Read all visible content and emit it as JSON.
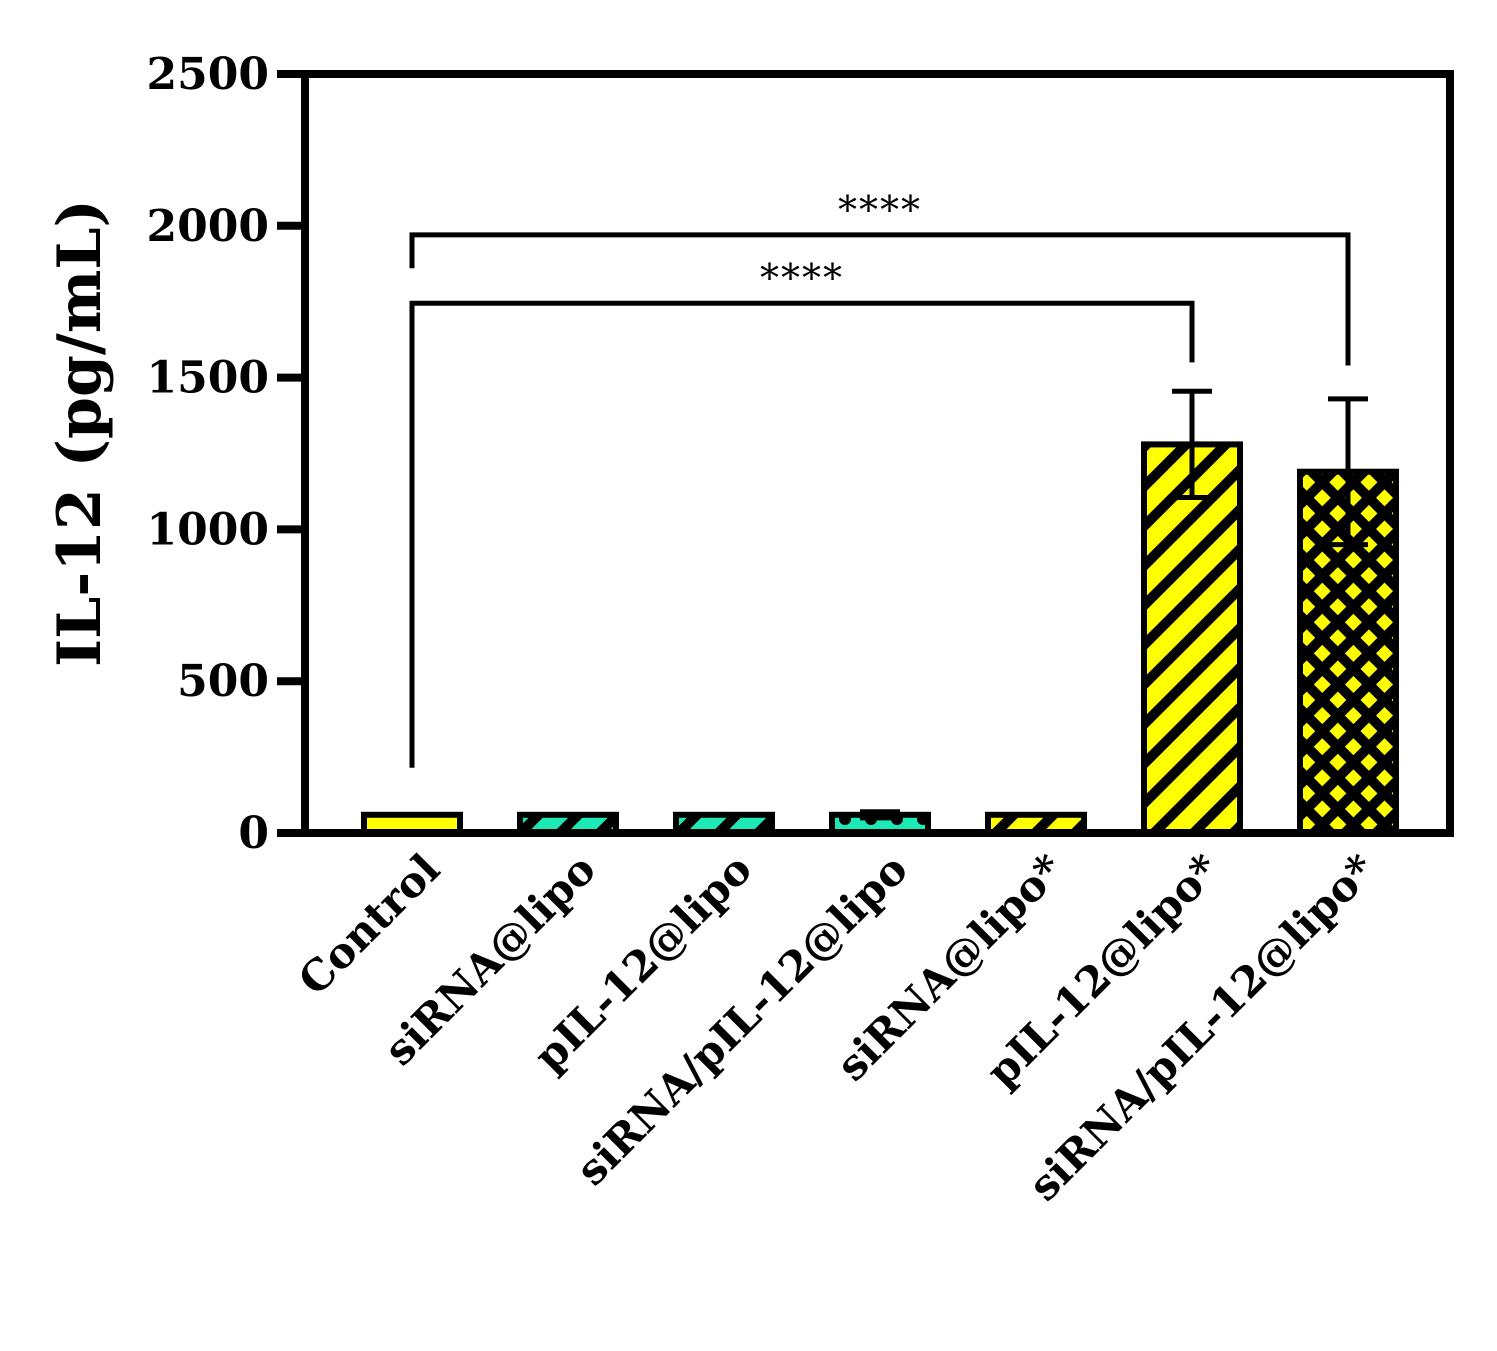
{
  "chart_data": {
    "type": "bar",
    "ylabel": "IL-12 (pg/mL)",
    "xlabel": "",
    "ylim": [
      0,
      2500
    ],
    "yticks": [
      0,
      500,
      1000,
      1500,
      2000,
      2500
    ],
    "yticks_text": [
      "0",
      "500",
      "1000",
      "1500",
      "2000",
      "2500"
    ],
    "categories": [
      "Control",
      "siRNA@lipo",
      "pIL-12@lipo",
      "siRNA/pIL-12@lipo",
      "siRNA@lipo*",
      "pIL-12@lipo*",
      "siRNA/pIL-12@lipo*"
    ],
    "values": [
      60,
      60,
      60,
      60,
      60,
      1280,
      1190
    ],
    "errors": [
      0,
      0,
      0,
      10,
      0,
      175,
      240
    ],
    "fills": [
      "#ffff00",
      "#1de9b6",
      "#1de9b6",
      "#1de9b6",
      "#ffff00",
      "#ffff00",
      "#ffff00"
    ],
    "patterns": [
      "solid",
      "diagonal",
      "diagonal",
      "dots",
      "diagonal",
      "diagonal",
      "crosshatch"
    ],
    "grid": false,
    "legend": "none",
    "significance": [
      {
        "from": 0,
        "to": 5,
        "label": "****"
      },
      {
        "from": 0,
        "to": 6,
        "label": "****"
      }
    ]
  }
}
